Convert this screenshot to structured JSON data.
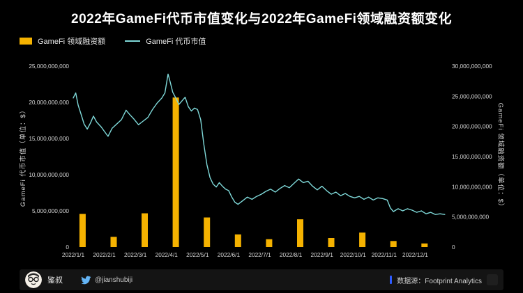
{
  "title": "2022年GameFi代币市值变化与2022年GameFi领域融资额变化",
  "legend": [
    {
      "label": "GameFi 领域融资额",
      "type": "bar",
      "color": "#F5B200"
    },
    {
      "label": "GameFi 代币市值",
      "type": "line",
      "color": "#7FD9D9"
    }
  ],
  "axes": {
    "left": {
      "title": "GameFi 代币市值（单位：$）",
      "ticks": [
        "0",
        "5,000,000,000",
        "10,000,000,000",
        "15,000,000,000",
        "20,000,000,000",
        "25,000,000,000"
      ],
      "values_b": [
        0,
        5,
        10,
        15,
        20,
        25
      ]
    },
    "right": {
      "title": "GameFi 领域融资额（单位：$）",
      "ticks": [
        "0",
        "5,000,000,000",
        "10,000,000,000",
        "15,000,000,000",
        "20,000,000,000",
        "25,000,000,000",
        "30,000,000,000"
      ],
      "values_b": [
        0,
        5,
        10,
        15,
        20,
        25,
        30
      ]
    }
  },
  "chart_data": {
    "type": "combo",
    "title": "2022年GameFi代币市值变化与2022年GameFi领域融资额变化",
    "grid": false,
    "legend_position": "top-left",
    "x_categories": [
      "2022/1/1",
      "2022/2/1",
      "2022/3/1",
      "2022/4/1",
      "2022/5/1",
      "2022/6/1",
      "2022/7/1",
      "2022/8/1",
      "2022/9/1",
      "2022/10/1",
      "2022/11/1",
      "2022/12/1"
    ],
    "left_axis": {
      "label": "GameFi 代币市值（单位：$）",
      "range_billion": [
        0,
        25
      ]
    },
    "right_axis": {
      "label": "GameFi 领域融资额（单位：$）",
      "range_billion": [
        0,
        30
      ]
    },
    "series": [
      {
        "name": "GameFi 领域融资额",
        "type": "bar",
        "axis": "right",
        "unit": "USD billions",
        "values_billion": [
          5.5,
          1.7,
          5.6,
          24.8,
          4.9,
          2.1,
          1.3,
          4.6,
          1.5,
          2.4,
          1.0,
          0.6
        ]
      },
      {
        "name": "GameFi 代币市值",
        "type": "line",
        "axis": "left",
        "unit": "USD billions, x = months since 2022/1/1",
        "points_month_billion": [
          [
            0,
            20.6
          ],
          [
            0.08,
            21.3
          ],
          [
            0.16,
            19.6
          ],
          [
            0.25,
            18.4
          ],
          [
            0.35,
            17.0
          ],
          [
            0.45,
            16.3
          ],
          [
            0.55,
            17.1
          ],
          [
            0.65,
            18.1
          ],
          [
            0.75,
            17.3
          ],
          [
            0.9,
            16.6
          ],
          [
            1.0,
            16.0
          ],
          [
            1.12,
            15.3
          ],
          [
            1.25,
            16.4
          ],
          [
            1.4,
            17.0
          ],
          [
            1.55,
            17.6
          ],
          [
            1.7,
            18.9
          ],
          [
            1.82,
            18.3
          ],
          [
            1.95,
            17.7
          ],
          [
            2.1,
            16.9
          ],
          [
            2.25,
            17.4
          ],
          [
            2.4,
            17.9
          ],
          [
            2.55,
            19.0
          ],
          [
            2.7,
            19.9
          ],
          [
            2.85,
            20.6
          ],
          [
            2.95,
            21.3
          ],
          [
            3.05,
            23.9
          ],
          [
            3.12,
            22.8
          ],
          [
            3.2,
            21.4
          ],
          [
            3.3,
            20.6
          ],
          [
            3.4,
            19.7
          ],
          [
            3.5,
            20.2
          ],
          [
            3.6,
            20.7
          ],
          [
            3.7,
            19.4
          ],
          [
            3.8,
            18.8
          ],
          [
            3.9,
            19.2
          ],
          [
            4.0,
            19.0
          ],
          [
            4.1,
            17.6
          ],
          [
            4.2,
            14.2
          ],
          [
            4.3,
            11.4
          ],
          [
            4.4,
            9.6
          ],
          [
            4.5,
            8.7
          ],
          [
            4.6,
            8.3
          ],
          [
            4.7,
            8.9
          ],
          [
            4.8,
            8.4
          ],
          [
            4.9,
            8.0
          ],
          [
            5.0,
            7.8
          ],
          [
            5.1,
            6.9
          ],
          [
            5.2,
            6.2
          ],
          [
            5.3,
            5.9
          ],
          [
            5.45,
            6.4
          ],
          [
            5.6,
            6.9
          ],
          [
            5.75,
            6.6
          ],
          [
            5.9,
            7.0
          ],
          [
            6.05,
            7.3
          ],
          [
            6.2,
            7.7
          ],
          [
            6.35,
            8.0
          ],
          [
            6.5,
            7.6
          ],
          [
            6.65,
            8.1
          ],
          [
            6.8,
            8.5
          ],
          [
            6.95,
            8.2
          ],
          [
            7.1,
            8.8
          ],
          [
            7.25,
            9.4
          ],
          [
            7.4,
            8.9
          ],
          [
            7.55,
            9.1
          ],
          [
            7.7,
            8.4
          ],
          [
            7.85,
            7.9
          ],
          [
            8.0,
            8.4
          ],
          [
            8.15,
            7.8
          ],
          [
            8.3,
            7.3
          ],
          [
            8.45,
            7.6
          ],
          [
            8.6,
            7.1
          ],
          [
            8.75,
            7.4
          ],
          [
            8.9,
            7.0
          ],
          [
            9.05,
            6.8
          ],
          [
            9.2,
            7.0
          ],
          [
            9.35,
            6.6
          ],
          [
            9.5,
            6.9
          ],
          [
            9.65,
            6.5
          ],
          [
            9.8,
            6.8
          ],
          [
            9.95,
            6.7
          ],
          [
            10.1,
            6.5
          ],
          [
            10.2,
            5.4
          ],
          [
            10.3,
            4.9
          ],
          [
            10.45,
            5.3
          ],
          [
            10.6,
            5.0
          ],
          [
            10.75,
            5.3
          ],
          [
            10.9,
            5.1
          ],
          [
            11.05,
            4.8
          ],
          [
            11.2,
            5.0
          ],
          [
            11.35,
            4.6
          ],
          [
            11.5,
            4.8
          ],
          [
            11.65,
            4.5
          ],
          [
            11.8,
            4.6
          ],
          [
            11.95,
            4.5
          ]
        ]
      }
    ]
  },
  "footer": {
    "brand_name": "鉴叔",
    "twitter_handle": "@jianshubiji",
    "source_label": "数据源：Footprint Analytics",
    "accent_color": "#2E5BFF"
  }
}
